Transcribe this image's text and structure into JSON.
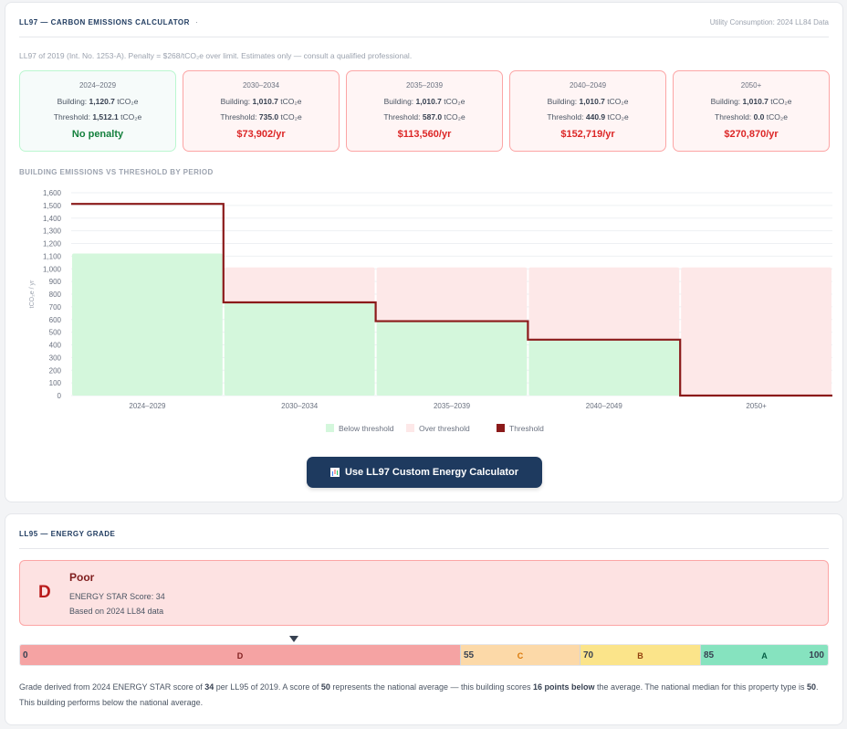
{
  "ll97": {
    "title": "LL97 — CARBON EMISSIONS CALCULATOR",
    "title_dot": "·",
    "meta": "Utility Consumption: 2024 LL84 Data",
    "note": "LL97 of 2019 (Int. No. 1253-A). Penalty = $268/tCO₂e over limit. Estimates only — consult a qualified professional.",
    "building_label": "Building:",
    "threshold_label": "Threshold:",
    "unit": "tCO₂e",
    "periods": [
      {
        "name": "2024–2029",
        "building": "1,120.7",
        "threshold": "1,512.1",
        "penalty": "No penalty"
      },
      {
        "name": "2030–2034",
        "building": "1,010.7",
        "threshold": "735.0",
        "penalty": "$73,902/yr"
      },
      {
        "name": "2035–2039",
        "building": "1,010.7",
        "threshold": "587.0",
        "penalty": "$113,560/yr"
      },
      {
        "name": "2040–2049",
        "building": "1,010.7",
        "threshold": "440.9",
        "penalty": "$152,719/yr"
      },
      {
        "name": "2050+",
        "building": "1,010.7",
        "threshold": "0.0",
        "penalty": "$270,870/yr"
      }
    ],
    "chart_section_label": "BUILDING EMISSIONS VS THRESHOLD BY PERIOD",
    "calc_button": "Use LL97 Custom Energy Calculator"
  },
  "chart_data": {
    "type": "bar",
    "categories": [
      "2024–2029",
      "2030–2034",
      "2035–2039",
      "2040–2049",
      "2050+"
    ],
    "series": [
      {
        "name": "Building emissions",
        "values": [
          1120.7,
          1010.7,
          1010.7,
          1010.7,
          1010.7
        ]
      },
      {
        "name": "Threshold",
        "values": [
          1512.1,
          735.0,
          587.0,
          440.9,
          0.0
        ]
      }
    ],
    "ylabel": "tCO₂e / yr",
    "ylim": [
      0,
      1600
    ],
    "yticks": [
      0,
      100,
      200,
      300,
      400,
      500,
      600,
      700,
      800,
      900,
      1000,
      1100,
      1200,
      1300,
      1400,
      1500,
      1600
    ],
    "grid": true,
    "legend": {
      "placement": "bottom",
      "entries": [
        "Below threshold",
        "Over threshold",
        "Threshold"
      ]
    },
    "colors": {
      "below": "#d4f7dc",
      "over": "#fde8e8",
      "threshold": "#8b1a1a"
    }
  },
  "ll95": {
    "title": "LL95 — ENERGY GRADE",
    "grade_letter": "D",
    "grade_rating": "Poor",
    "score_text": "ENERGY STAR Score: 34",
    "basis_text": "Based on 2024 LL84 data",
    "bar": {
      "start": "0",
      "segments": [
        {
          "letter": "D",
          "start": "0",
          "end": "55"
        },
        {
          "letter": "C",
          "start": "55",
          "end": "70"
        },
        {
          "letter": "B",
          "start": "70",
          "end": "85"
        },
        {
          "letter": "A",
          "start": "85",
          "end": "100"
        }
      ],
      "labels": [
        "55",
        "70",
        "85"
      ],
      "end": "100",
      "marker_score": 34
    },
    "desc": {
      "p1": "Grade derived from 2024 ENERGY STAR score of ",
      "score": "34",
      "p2": " per LL95 of 2019. A score of ",
      "avg": "50",
      "p3": " represents the national average — this building scores ",
      "diff": "16 points below",
      "p4": " the average. The national median for this property type is ",
      "median": "50",
      "p5": ". This building performs below the national average."
    }
  }
}
